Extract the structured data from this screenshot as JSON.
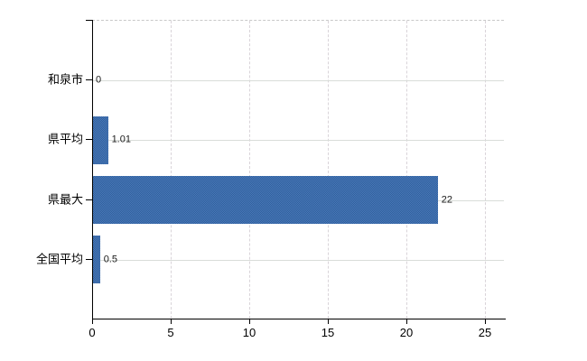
{
  "page": {
    "background": "#ffffff"
  },
  "chart_data": {
    "type": "bar",
    "orientation": "horizontal",
    "title": "",
    "categories": [
      "和泉市",
      "県平均",
      "県最大",
      "全国平均"
    ],
    "values": [
      0,
      1.01,
      22,
      0.5
    ],
    "value_labels": [
      "0",
      "1.01",
      "22",
      "0.5"
    ],
    "x_ticks": [
      0,
      5,
      10,
      15,
      20,
      25
    ],
    "x_tick_labels": [
      "0",
      "5",
      "10",
      "15",
      "20",
      "25"
    ],
    "xlim": [
      0,
      26.2
    ],
    "ylabel": "",
    "xlabel": "",
    "grid": true,
    "legend": false,
    "colors": {
      "bar": "#3b6cab",
      "bar_dither_light": "#4a79b9",
      "bar_dither_dark": "#2f5f9c",
      "axis": "#000000",
      "grid_horizontal": "#d9ddd9",
      "grid_vertical": "#d9d4d9",
      "plot_top_border": "#c9c9c9",
      "text": "#000000"
    }
  }
}
